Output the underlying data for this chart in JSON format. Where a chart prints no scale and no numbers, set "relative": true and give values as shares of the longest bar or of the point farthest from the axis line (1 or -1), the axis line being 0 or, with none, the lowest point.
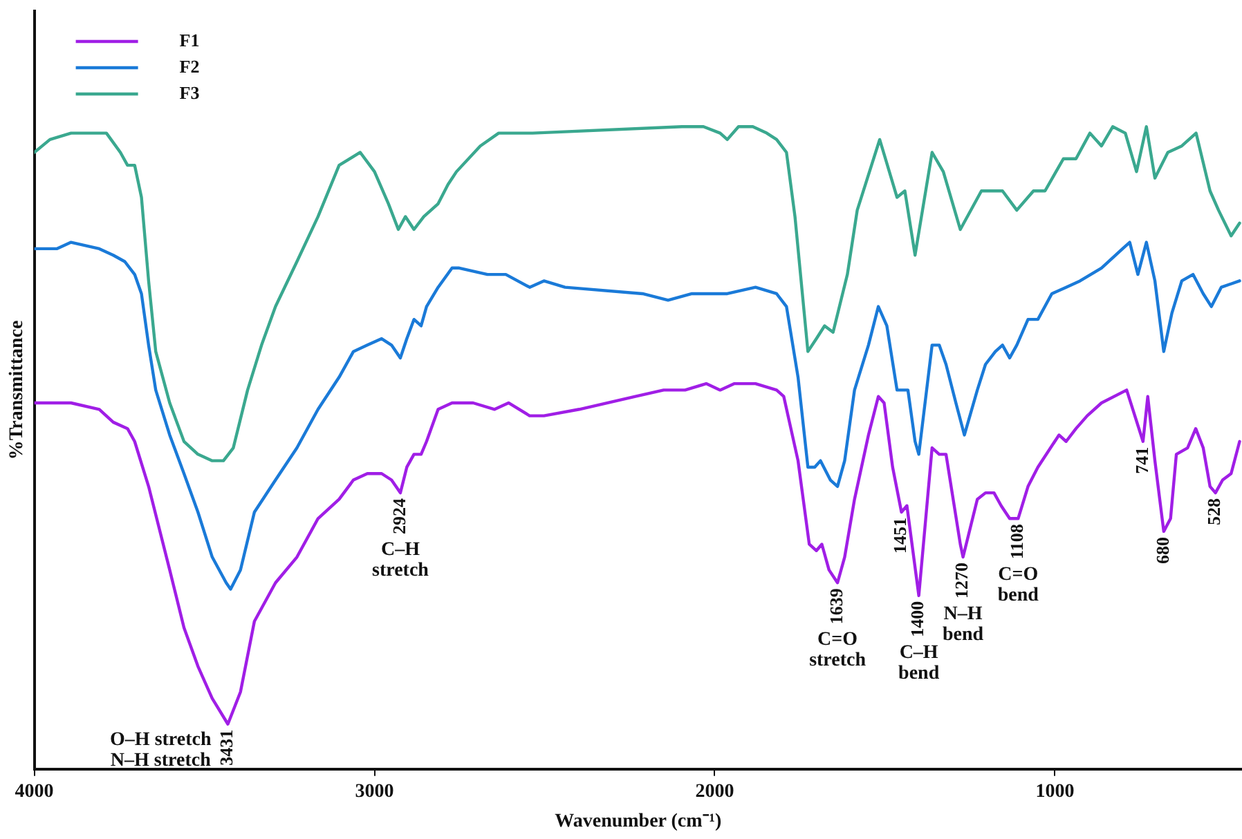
{
  "chart_data": {
    "type": "line",
    "xlabel": "Wavenumber (cm⁻¹)",
    "ylabel": "%Transmittance",
    "relative": true,
    "xlim": [
      4000,
      450
    ],
    "xticks": [
      4000,
      3000,
      2000,
      1000
    ],
    "grid": false,
    "legend": "top left",
    "marker": "none",
    "line_style": "solid",
    "series": [
      {
        "name": "F1",
        "color": "#a01ee6",
        "x": [
          4000,
          3934,
          3892,
          3809,
          3768,
          3726,
          3705,
          3664,
          3602,
          3560,
          3519,
          3477,
          3431,
          3394,
          3353,
          3291,
          3228,
          3166,
          3104,
          3062,
          3021,
          2979,
          2950,
          2924,
          2905,
          2884,
          2863,
          2847,
          2813,
          2772,
          2710,
          2647,
          2606,
          2544,
          2502,
          2398,
          2233,
          2150,
          2087,
          2025,
          1984,
          1942,
          1880,
          1818,
          1797,
          1755,
          1722,
          1701,
          1685,
          1664,
          1639,
          1618,
          1589,
          1548,
          1519,
          1502,
          1477,
          1451,
          1435,
          1400,
          1361,
          1340,
          1320,
          1278,
          1270,
          1228,
          1204,
          1179,
          1158,
          1133,
          1108,
          1079,
          1050,
          988,
          967,
          938,
          905,
          863,
          789,
          741,
          727,
          706,
          680,
          660,
          643,
          610,
          586,
          564,
          544,
          528,
          507,
          482,
          457
        ],
        "values": [
          0.57,
          0.57,
          0.57,
          0.56,
          0.54,
          0.53,
          0.51,
          0.44,
          0.31,
          0.22,
          0.16,
          0.11,
          0.07,
          0.12,
          0.23,
          0.29,
          0.33,
          0.39,
          0.42,
          0.45,
          0.46,
          0.46,
          0.45,
          0.43,
          0.47,
          0.49,
          0.49,
          0.51,
          0.56,
          0.57,
          0.57,
          0.56,
          0.57,
          0.55,
          0.55,
          0.56,
          0.58,
          0.59,
          0.59,
          0.6,
          0.59,
          0.6,
          0.6,
          0.59,
          0.58,
          0.48,
          0.35,
          0.34,
          0.35,
          0.31,
          0.29,
          0.33,
          0.42,
          0.52,
          0.58,
          0.57,
          0.47,
          0.4,
          0.41,
          0.27,
          0.5,
          0.49,
          0.49,
          0.35,
          0.33,
          0.42,
          0.43,
          0.43,
          0.41,
          0.39,
          0.39,
          0.44,
          0.47,
          0.52,
          0.51,
          0.53,
          0.55,
          0.57,
          0.59,
          0.51,
          0.58,
          0.48,
          0.37,
          0.39,
          0.49,
          0.5,
          0.53,
          0.5,
          0.44,
          0.43,
          0.45,
          0.46,
          0.51
        ]
      },
      {
        "name": "F2",
        "color": "#1a7ad8",
        "x": [
          4000,
          3934,
          3892,
          3809,
          3768,
          3734,
          3705,
          3685,
          3664,
          3643,
          3602,
          3560,
          3519,
          3477,
          3436,
          3423,
          3394,
          3353,
          3291,
          3228,
          3166,
          3104,
          3062,
          3021,
          2979,
          2950,
          2924,
          2905,
          2884,
          2863,
          2847,
          2813,
          2772,
          2751,
          2668,
          2614,
          2544,
          2502,
          2440,
          2212,
          2137,
          2067,
          2025,
          1963,
          1880,
          1818,
          1789,
          1755,
          1726,
          1706,
          1689,
          1660,
          1639,
          1618,
          1589,
          1548,
          1519,
          1494,
          1464,
          1432,
          1411,
          1400,
          1361,
          1340,
          1320,
          1291,
          1266,
          1228,
          1204,
          1175,
          1154,
          1133,
          1112,
          1079,
          1050,
          1009,
          967,
          926,
          863,
          801,
          780,
          756,
          731,
          706,
          680,
          656,
          627,
          594,
          564,
          540,
          511,
          457
        ],
        "values": [
          0.81,
          0.81,
          0.82,
          0.81,
          0.8,
          0.79,
          0.77,
          0.74,
          0.66,
          0.59,
          0.52,
          0.46,
          0.4,
          0.33,
          0.29,
          0.28,
          0.31,
          0.4,
          0.45,
          0.5,
          0.56,
          0.61,
          0.65,
          0.66,
          0.67,
          0.66,
          0.64,
          0.67,
          0.7,
          0.69,
          0.72,
          0.75,
          0.78,
          0.78,
          0.77,
          0.77,
          0.75,
          0.76,
          0.75,
          0.74,
          0.73,
          0.74,
          0.74,
          0.74,
          0.75,
          0.74,
          0.72,
          0.61,
          0.47,
          0.47,
          0.48,
          0.45,
          0.44,
          0.48,
          0.59,
          0.66,
          0.72,
          0.69,
          0.59,
          0.59,
          0.51,
          0.49,
          0.66,
          0.66,
          0.63,
          0.57,
          0.52,
          0.59,
          0.63,
          0.65,
          0.66,
          0.64,
          0.66,
          0.7,
          0.7,
          0.74,
          0.75,
          0.76,
          0.78,
          0.81,
          0.82,
          0.77,
          0.82,
          0.76,
          0.65,
          0.71,
          0.76,
          0.77,
          0.74,
          0.72,
          0.75,
          0.76
        ]
      },
      {
        "name": "F3",
        "color": "#3aa88f",
        "x": [
          4000,
          3954,
          3892,
          3830,
          3788,
          3747,
          3726,
          3705,
          3685,
          3664,
          3643,
          3602,
          3560,
          3519,
          3477,
          3444,
          3415,
          3373,
          3332,
          3291,
          3228,
          3166,
          3104,
          3042,
          3000,
          2959,
          2930,
          2909,
          2884,
          2855,
          2813,
          2784,
          2759,
          2689,
          2635,
          2594,
          2564,
          2535,
          2096,
          2033,
          1984,
          1963,
          1930,
          1888,
          1847,
          1818,
          1789,
          1764,
          1726,
          1701,
          1677,
          1652,
          1610,
          1581,
          1569,
          1515,
          1464,
          1441,
          1411,
          1361,
          1328,
          1278,
          1216,
          1175,
          1154,
          1112,
          1063,
          1029,
          975,
          938,
          897,
          863,
          830,
          793,
          760,
          731,
          706,
          668,
          627,
          585,
          544,
          519,
          482,
          457
        ],
        "values": [
          0.96,
          0.98,
          0.99,
          0.99,
          0.99,
          0.96,
          0.94,
          0.94,
          0.89,
          0.76,
          0.65,
          0.57,
          0.51,
          0.49,
          0.48,
          0.48,
          0.5,
          0.59,
          0.66,
          0.72,
          0.79,
          0.86,
          0.94,
          0.96,
          0.93,
          0.88,
          0.84,
          0.86,
          0.84,
          0.86,
          0.88,
          0.91,
          0.93,
          0.97,
          0.99,
          0.99,
          0.99,
          0.99,
          1,
          1,
          0.99,
          0.98,
          1,
          1,
          0.99,
          0.98,
          0.96,
          0.86,
          0.65,
          0.67,
          0.69,
          0.68,
          0.77,
          0.87,
          0.89,
          0.98,
          0.89,
          0.9,
          0.8,
          0.96,
          0.93,
          0.84,
          0.9,
          0.9,
          0.9,
          0.87,
          0.9,
          0.9,
          0.95,
          0.95,
          0.99,
          0.97,
          1,
          0.99,
          0.93,
          1,
          0.92,
          0.96,
          0.97,
          0.99,
          0.9,
          0.87,
          0.83,
          0.85
        ]
      }
    ],
    "annotations": [
      {
        "text": "3431",
        "x": 3431,
        "y": 0.07
      },
      "O–H stretch\nN–H stretch",
      {
        "text": "2924",
        "x": 2924,
        "y": 0.43
      },
      "C–H\nstretch",
      {
        "text": "1639",
        "x": 1639,
        "y": 0.29
      },
      "C=O\nstretch",
      {
        "text": "1451",
        "x": 1451,
        "y": 0.4
      },
      {
        "text": "1400",
        "x": 1400,
        "y": 0.27
      },
      "C–H\nbend",
      {
        "text": "1270",
        "x": 1270,
        "y": 0.33
      },
      "N–H\nbend",
      {
        "text": "1108",
        "x": 1108,
        "y": 0.39
      },
      "C=O\nbend",
      {
        "text": "741",
        "x": 741,
        "y": 0.51
      },
      {
        "text": "680",
        "x": 680,
        "y": 0.37
      },
      {
        "text": "528",
        "x": 528,
        "y": 0.43
      }
    ]
  }
}
